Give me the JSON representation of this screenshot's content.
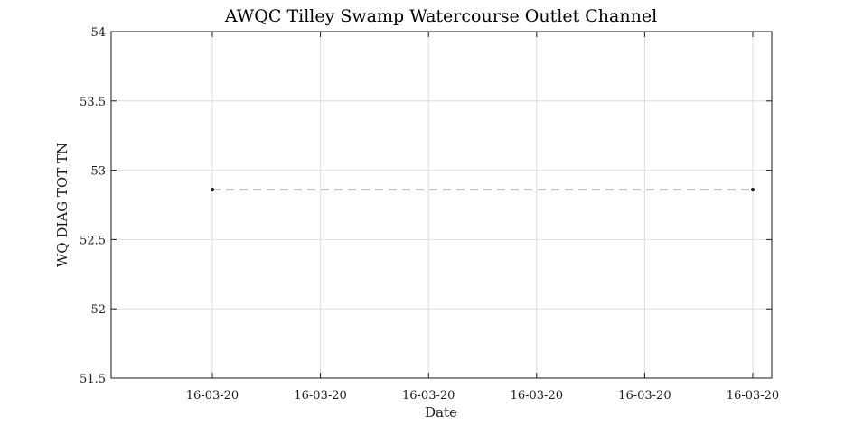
{
  "chart_data": {
    "type": "line",
    "title": "AWQC Tilley Swamp Watercourse Outlet Channel",
    "xlabel": "Date",
    "ylabel": "WQ DIAG TOT TN",
    "x_tick_labels": [
      "16-03-20",
      "16-03-20",
      "16-03-20",
      "16-03-20",
      "16-03-20",
      "16-03-20"
    ],
    "y_ticks": [
      51.5,
      52,
      52.5,
      53,
      53.5,
      54
    ],
    "y_tick_labels": [
      "51.5",
      "52",
      "52.5",
      "53",
      "53.5",
      "54"
    ],
    "ylim": [
      51.5,
      54
    ],
    "grid": true,
    "series": [
      {
        "x_tick_position": [
          0,
          5
        ],
        "values": [
          52.86,
          52.86
        ],
        "line_style": "dashed",
        "line_color": "#c0c0c0",
        "marker_color": "#000000"
      }
    ]
  }
}
